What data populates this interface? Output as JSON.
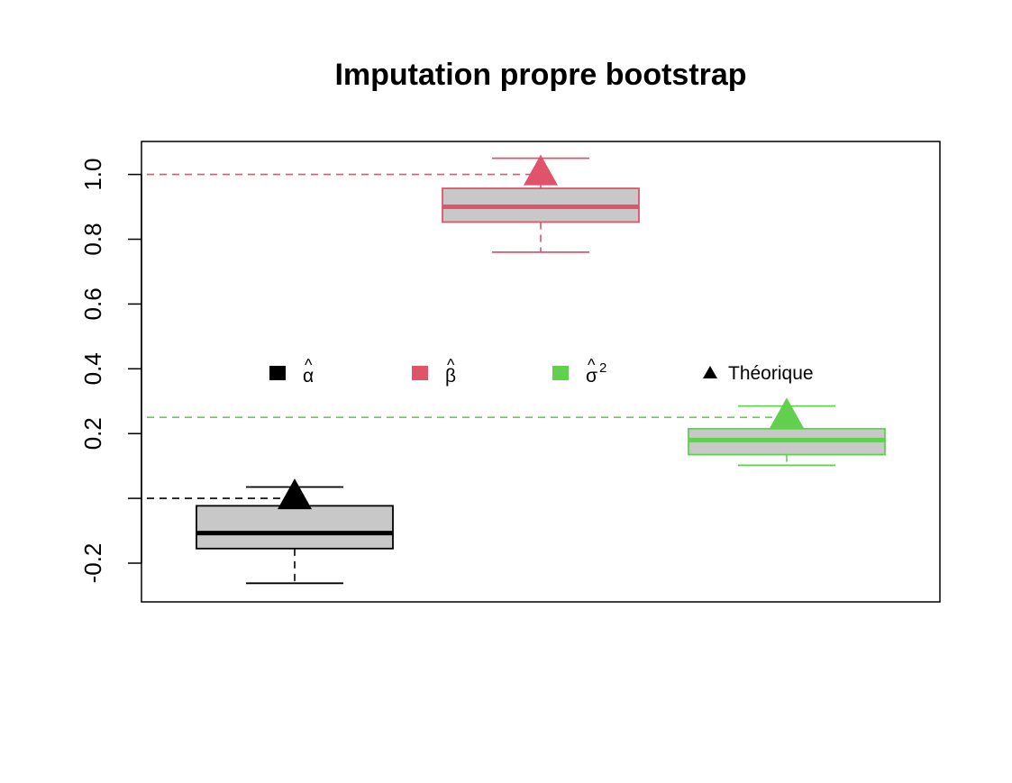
{
  "chart_data": {
    "type": "boxplot",
    "title": "Imputation propre bootstrap",
    "xlabel": "",
    "ylabel": "",
    "ylim": [
      -0.3,
      1.1
    ],
    "y_ticks": [
      {
        "value": -0.2,
        "label": "-0.2"
      },
      {
        "value": 0.2,
        "label": "0.2"
      },
      {
        "value": 0.4,
        "label": "0.4"
      },
      {
        "value": 0.6,
        "label": "0.6"
      },
      {
        "value": 0.8,
        "label": "0.8"
      },
      {
        "value": 1.0,
        "label": "1.0"
      }
    ],
    "y_tick_marks": [
      -0.2,
      0.0,
      0.2,
      0.4,
      0.6,
      0.8,
      1.0
    ],
    "grid": false,
    "series": [
      {
        "name": "α̂",
        "symbol": "α",
        "superscript": "",
        "color": "#000000",
        "whisker_low": -0.262,
        "q1": -0.155,
        "median": -0.107,
        "q3": -0.023,
        "whisker_high": 0.035,
        "theoretical": 0.0
      },
      {
        "name": "β̂",
        "symbol": "β",
        "superscript": "",
        "color": "#DF536B",
        "whisker_low": 0.76,
        "q1": 0.853,
        "median": 0.9,
        "q3": 0.957,
        "whisker_high": 1.05,
        "theoretical": 1.0
      },
      {
        "name": "σ̂²",
        "symbol": "σ",
        "superscript": "2",
        "color": "#61D04F",
        "whisker_low": 0.102,
        "q1": 0.135,
        "median": 0.18,
        "q3": 0.215,
        "whisker_high": 0.285,
        "theoretical": 0.25
      }
    ],
    "legend": {
      "placement": "center",
      "theoretical_label": "Théorique"
    },
    "box_fill": "#C8C8C8"
  }
}
